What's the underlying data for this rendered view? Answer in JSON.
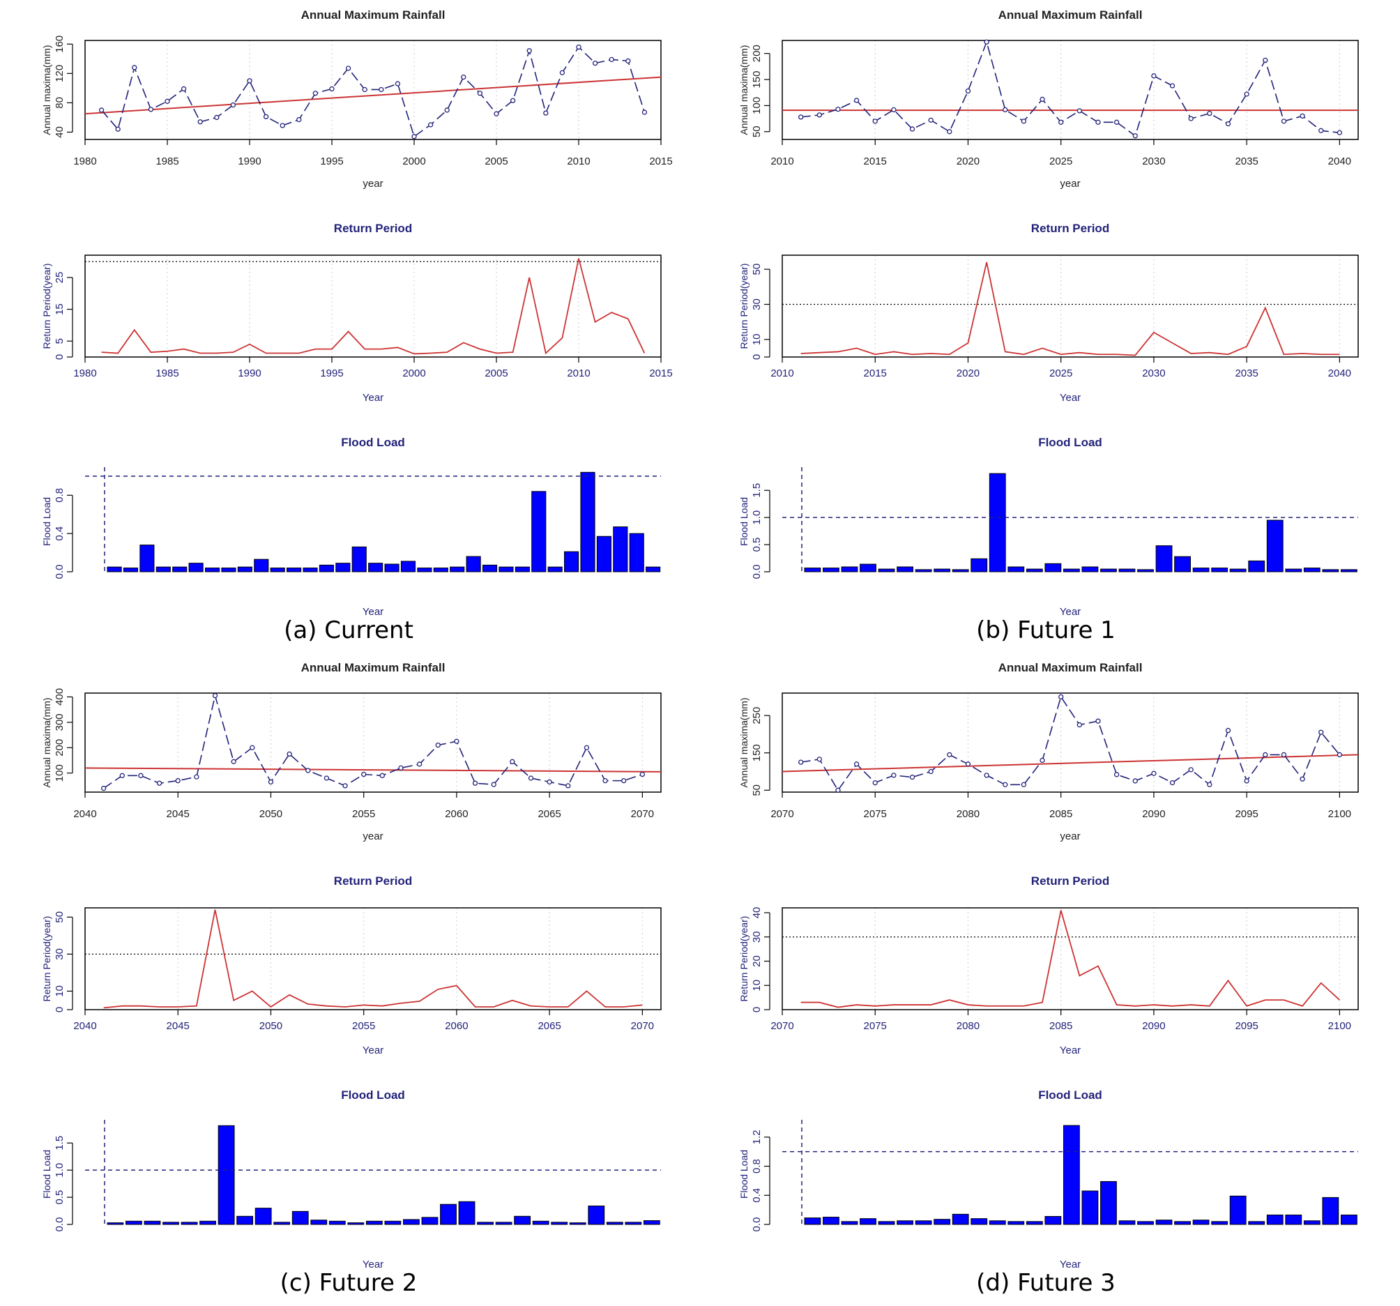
{
  "panels": [
    {
      "caption": "(a) Current",
      "x_ticks": [
        1980,
        1985,
        1990,
        1995,
        2000,
        2005,
        2010,
        2015
      ],
      "x_range": [
        1980,
        2015
      ],
      "years": [
        1981,
        1982,
        1983,
        1984,
        1985,
        1986,
        1987,
        1988,
        1989,
        1990,
        1991,
        1992,
        1993,
        1994,
        1995,
        1996,
        1997,
        1998,
        1999,
        2000,
        2001,
        2002,
        2003,
        2004,
        2005,
        2006,
        2007,
        2008,
        2009,
        2010,
        2011,
        2012,
        2013,
        2014
      ],
      "rainfall": {
        "title": "Annual Maximum Rainfall",
        "xlabel": "year",
        "ylabel": "Annual maxima(mm)",
        "ylim": [
          30,
          165
        ],
        "y_ticks": [
          40,
          80,
          120,
          160
        ],
        "values": [
          70,
          44,
          128,
          71,
          82,
          99,
          54,
          60,
          77,
          110,
          61,
          49,
          57,
          93,
          99,
          127,
          98,
          98,
          106,
          34,
          50,
          70,
          115,
          93,
          65,
          83,
          151,
          66,
          121,
          156,
          134,
          139,
          137,
          67
        ],
        "trend": [
          65,
          115
        ]
      },
      "return_period": {
        "title": "Return Period",
        "xlabel": "Year",
        "ylabel": "Return Period(year)",
        "ylim": [
          0,
          32
        ],
        "y_ticks": [
          0,
          5,
          15,
          25
        ],
        "threshold": 30,
        "values": [
          1.5,
          1.2,
          8.5,
          1.5,
          1.8,
          2.5,
          1.2,
          1.2,
          1.5,
          4,
          1.2,
          1.2,
          1.2,
          2.5,
          2.5,
          8,
          2.5,
          2.5,
          3,
          1,
          1.2,
          1.5,
          4.5,
          2.5,
          1.2,
          1.5,
          25,
          1.2,
          6,
          31,
          11,
          14,
          12,
          1.2
        ]
      },
      "flood_load": {
        "title": "Flood Load",
        "xlabel": "Year",
        "ylabel": "Flood Load",
        "ylim": [
          0,
          1.05
        ],
        "y_ticks": [
          0.0,
          0.4,
          0.8
        ],
        "threshold": 1,
        "values": [
          0.05,
          0.04,
          0.28,
          0.05,
          0.05,
          0.09,
          0.04,
          0.04,
          0.05,
          0.13,
          0.04,
          0.04,
          0.04,
          0.07,
          0.09,
          0.26,
          0.09,
          0.08,
          0.11,
          0.04,
          0.04,
          0.05,
          0.16,
          0.07,
          0.05,
          0.05,
          0.84,
          0.05,
          0.21,
          1.04,
          0.37,
          0.47,
          0.4,
          0.05
        ]
      }
    },
    {
      "caption": "(b) Future 1",
      "x_ticks": [
        2010,
        2015,
        2020,
        2025,
        2030,
        2035,
        2040
      ],
      "x_range": [
        2010,
        2041
      ],
      "years": [
        2011,
        2012,
        2013,
        2014,
        2015,
        2016,
        2017,
        2018,
        2019,
        2020,
        2021,
        2022,
        2023,
        2024,
        2025,
        2026,
        2027,
        2028,
        2029,
        2030,
        2031,
        2032,
        2033,
        2034,
        2035,
        2036,
        2037,
        2038,
        2039,
        2040
      ],
      "rainfall": {
        "title": "Annual Maximum Rainfall",
        "xlabel": "year",
        "ylabel": "Annual maxima(mm)",
        "ylim": [
          35,
          225
        ],
        "y_ticks": [
          50,
          100,
          150,
          200
        ],
        "values": [
          78,
          82,
          93,
          110,
          70,
          92,
          55,
          72,
          50,
          128,
          222,
          92,
          70,
          112,
          68,
          90,
          68,
          68,
          42,
          157,
          138,
          75,
          85,
          65,
          122,
          187,
          70,
          80,
          52,
          48
        ],
        "trend": [
          91,
          91
        ]
      },
      "return_period": {
        "title": "Return Period",
        "xlabel": "Year",
        "ylabel": "Return Period(year)",
        "ylim": [
          0,
          58
        ],
        "y_ticks": [
          0,
          10,
          30,
          50
        ],
        "threshold": 30,
        "values": [
          2,
          2.5,
          3,
          5,
          1.5,
          3,
          1.5,
          2,
          1.5,
          8,
          54,
          3,
          1.5,
          5,
          1.5,
          2.5,
          1.5,
          1.5,
          1,
          14,
          8,
          2,
          2.5,
          1.5,
          6,
          28,
          1.5,
          2,
          1.5,
          1.5
        ]
      },
      "flood_load": {
        "title": "Flood Load",
        "xlabel": "Year",
        "ylabel": "Flood Load",
        "ylim": [
          0,
          1.85
        ],
        "y_ticks": [
          0.0,
          0.5,
          1.0,
          1.5
        ],
        "threshold": 1,
        "values": [
          0.07,
          0.07,
          0.09,
          0.14,
          0.05,
          0.09,
          0.04,
          0.05,
          0.04,
          0.24,
          1.81,
          0.09,
          0.05,
          0.15,
          0.05,
          0.09,
          0.05,
          0.05,
          0.04,
          0.48,
          0.28,
          0.07,
          0.07,
          0.05,
          0.2,
          0.95,
          0.05,
          0.07,
          0.04,
          0.04
        ]
      }
    },
    {
      "caption": "(c) Future 2",
      "x_ticks": [
        2040,
        2045,
        2050,
        2055,
        2060,
        2065,
        2070
      ],
      "x_range": [
        2040,
        2071
      ],
      "years": [
        2041,
        2042,
        2043,
        2044,
        2045,
        2046,
        2047,
        2048,
        2049,
        2050,
        2051,
        2052,
        2053,
        2054,
        2055,
        2056,
        2057,
        2058,
        2059,
        2060,
        2061,
        2062,
        2063,
        2064,
        2065,
        2066,
        2067,
        2068,
        2069,
        2070
      ],
      "rainfall": {
        "title": "Annual Maximum Rainfall",
        "xlabel": "year",
        "ylabel": "Annual maxima(mm)",
        "ylim": [
          25,
          415
        ],
        "y_ticks": [
          100,
          200,
          300,
          400
        ],
        "values": [
          40,
          90,
          90,
          60,
          70,
          85,
          405,
          145,
          200,
          65,
          175,
          110,
          80,
          50,
          95,
          90,
          120,
          135,
          210,
          225,
          60,
          55,
          145,
          80,
          65,
          50,
          200,
          70,
          70,
          95
        ],
        "trend": [
          120,
          105
        ]
      },
      "return_period": {
        "title": "Return Period",
        "xlabel": "Year",
        "ylabel": "Return Period(year)",
        "ylim": [
          0,
          55
        ],
        "y_ticks": [
          0,
          10,
          30,
          50
        ],
        "threshold": 30,
        "values": [
          1,
          2,
          2,
          1.5,
          1.5,
          2,
          54,
          5,
          10,
          1.5,
          8,
          3,
          2,
          1.5,
          2.5,
          2,
          3.5,
          4.5,
          11,
          13,
          1.5,
          1.5,
          5,
          2,
          1.5,
          1.5,
          10,
          1.5,
          1.5,
          2.5
        ]
      },
      "flood_load": {
        "title": "Flood Load",
        "xlabel": "Year",
        "ylabel": "Flood Load",
        "ylim": [
          0,
          1.85
        ],
        "y_ticks": [
          0.0,
          0.5,
          1.0,
          1.5
        ],
        "threshold": 1,
        "values": [
          0.03,
          0.06,
          0.06,
          0.04,
          0.04,
          0.06,
          1.82,
          0.15,
          0.3,
          0.04,
          0.24,
          0.08,
          0.06,
          0.03,
          0.06,
          0.06,
          0.09,
          0.13,
          0.37,
          0.42,
          0.04,
          0.04,
          0.15,
          0.06,
          0.04,
          0.03,
          0.34,
          0.04,
          0.04,
          0.07
        ]
      }
    },
    {
      "caption": "(d) Future 3",
      "x_ticks": [
        2070,
        2075,
        2080,
        2085,
        2090,
        2095,
        2100
      ],
      "x_range": [
        2070,
        2101
      ],
      "years": [
        2071,
        2072,
        2073,
        2074,
        2075,
        2076,
        2077,
        2078,
        2079,
        2080,
        2081,
        2082,
        2083,
        2084,
        2085,
        2086,
        2087,
        2088,
        2089,
        2090,
        2091,
        2092,
        2093,
        2094,
        2095,
        2096,
        2097,
        2098,
        2099,
        2100
      ],
      "rainfall": {
        "title": "Annual Maximum Rainfall",
        "xlabel": "year",
        "ylabel": "Annual maxima(mm)",
        "ylim": [
          45,
          310
        ],
        "y_ticks": [
          50,
          150,
          250
        ],
        "values": [
          125,
          133,
          50,
          120,
          70,
          90,
          85,
          100,
          145,
          120,
          90,
          65,
          65,
          130,
          300,
          225,
          235,
          92,
          75,
          95,
          70,
          105,
          65,
          210,
          75,
          145,
          145,
          80,
          205,
          145
        ],
        "trend": [
          100,
          145
        ]
      },
      "return_period": {
        "title": "Return Period",
        "xlabel": "Year",
        "ylabel": "Return Period(year)",
        "ylim": [
          0,
          42
        ],
        "y_ticks": [
          0,
          10,
          20,
          30,
          40
        ],
        "threshold": 30,
        "values": [
          3,
          3,
          1,
          2,
          1.5,
          2,
          2,
          2,
          4,
          2,
          1.5,
          1.5,
          1.5,
          3,
          41,
          14,
          18,
          2,
          1.5,
          2,
          1.5,
          2,
          1.5,
          12,
          1.5,
          4,
          4,
          1.5,
          11,
          4
        ]
      },
      "flood_load": {
        "title": "Flood Load",
        "xlabel": "Year",
        "ylabel": "Flood Load",
        "ylim": [
          0,
          1.38
        ],
        "y_ticks": [
          0.0,
          0.4,
          0.8,
          1.2
        ],
        "threshold": 1,
        "values": [
          0.09,
          0.1,
          0.04,
          0.08,
          0.04,
          0.05,
          0.05,
          0.07,
          0.14,
          0.08,
          0.05,
          0.04,
          0.04,
          0.11,
          1.36,
          0.46,
          0.59,
          0.05,
          0.04,
          0.06,
          0.04,
          0.06,
          0.04,
          0.39,
          0.04,
          0.13,
          0.13,
          0.05,
          0.37,
          0.13
        ]
      }
    }
  ],
  "colors": {
    "rain_line": "#22227a",
    "trend": "#cc3333",
    "rp_line": "#cc3333",
    "bar_fill": "#0000ff",
    "axis_text": "#22227a",
    "threshold": "#22227a",
    "grid": "#cccccc"
  }
}
